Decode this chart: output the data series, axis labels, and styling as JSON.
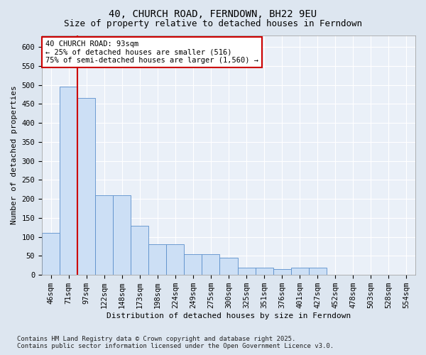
{
  "title": "40, CHURCH ROAD, FERNDOWN, BH22 9EU",
  "subtitle": "Size of property relative to detached houses in Ferndown",
  "xlabel": "Distribution of detached houses by size in Ferndown",
  "ylabel": "Number of detached properties",
  "footer_line1": "Contains HM Land Registry data © Crown copyright and database right 2025.",
  "footer_line2": "Contains public sector information licensed under the Open Government Licence v3.0.",
  "categories": [
    "46sqm",
    "71sqm",
    "97sqm",
    "122sqm",
    "148sqm",
    "173sqm",
    "198sqm",
    "224sqm",
    "249sqm",
    "275sqm",
    "300sqm",
    "325sqm",
    "351sqm",
    "376sqm",
    "401sqm",
    "427sqm",
    "452sqm",
    "478sqm",
    "503sqm",
    "528sqm",
    "554sqm"
  ],
  "values": [
    110,
    495,
    465,
    210,
    210,
    130,
    80,
    80,
    55,
    55,
    45,
    20,
    20,
    15,
    20,
    20,
    0,
    0,
    0,
    0,
    0
  ],
  "bar_color": "#ccdff5",
  "bar_edge_color": "#5b8fcb",
  "vline_color": "#cc0000",
  "vline_pos": 1.5,
  "annotation_text": "40 CHURCH ROAD: 93sqm\n← 25% of detached houses are smaller (516)\n75% of semi-detached houses are larger (1,560) →",
  "annotation_box_color": "#ffffff",
  "annotation_box_edge_color": "#cc0000",
  "ylim": [
    0,
    630
  ],
  "yticks": [
    0,
    50,
    100,
    150,
    200,
    250,
    300,
    350,
    400,
    450,
    500,
    550,
    600
  ],
  "background_color": "#dde6f0",
  "plot_background_color": "#eaf0f8",
  "grid_color": "#ffffff",
  "title_fontsize": 10,
  "subtitle_fontsize": 9,
  "axis_label_fontsize": 8,
  "tick_fontsize": 7.5,
  "annotation_fontsize": 7.5,
  "footer_fontsize": 6.5
}
